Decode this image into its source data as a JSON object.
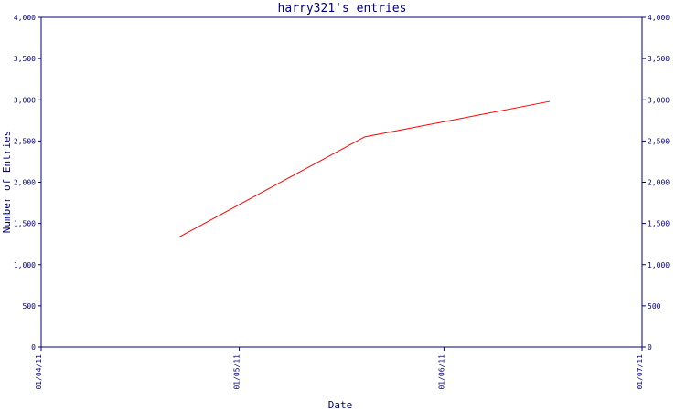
{
  "chart_data": {
    "type": "line",
    "title": "harry321's entries",
    "xlabel": "Date",
    "ylabel": "Number of Entries",
    "x_ticks": [
      "01/04/11",
      "01/05/11",
      "01/06/11",
      "01/07/11"
    ],
    "y_ticks": [
      "0",
      "500",
      "1,000",
      "1,500",
      "2,000",
      "2,500",
      "3,000",
      "3,500",
      "4,000"
    ],
    "ylim": [
      0,
      4000
    ],
    "xlim": [
      "2011-04-01",
      "2011-07-01"
    ],
    "series": [
      {
        "x": [
          "2011-04-22",
          "2011-05-20",
          "2011-06-17"
        ],
        "y": [
          1340,
          2550,
          2980
        ]
      }
    ],
    "grid": false,
    "colors": {
      "axis": "#000080",
      "line": "#ff0000"
    }
  }
}
